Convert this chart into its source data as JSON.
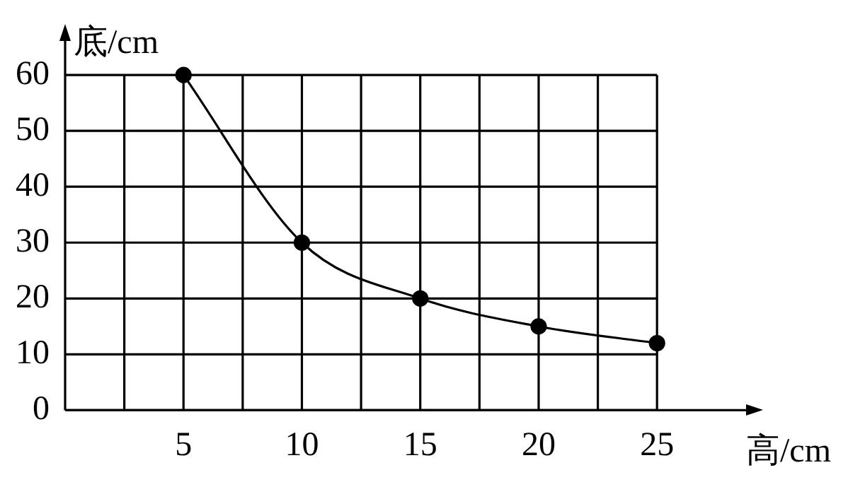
{
  "chart_data": {
    "type": "line",
    "xlabel": "高/cm",
    "ylabel": "底/cm",
    "x": [
      5,
      10,
      15,
      20,
      25
    ],
    "series": [
      {
        "color": "#000000",
        "values": [
          60,
          30,
          20,
          15,
          12
        ]
      }
    ],
    "xlim": [
      0,
      29
    ],
    "ylim": [
      0,
      67
    ],
    "xticks": [
      {
        "value": 2.5,
        "label": null
      },
      5,
      {
        "value": 7.5,
        "label": null
      },
      10,
      {
        "value": 12.5,
        "label": null
      },
      15,
      {
        "value": 17.5,
        "label": null
      },
      20,
      {
        "value": 22.5,
        "label": null
      },
      25
    ],
    "yticks": [
      0,
      10,
      20,
      30,
      40,
      50,
      60
    ],
    "grid": true,
    "legend": false,
    "marker": "circle",
    "line_style": "solid"
  }
}
